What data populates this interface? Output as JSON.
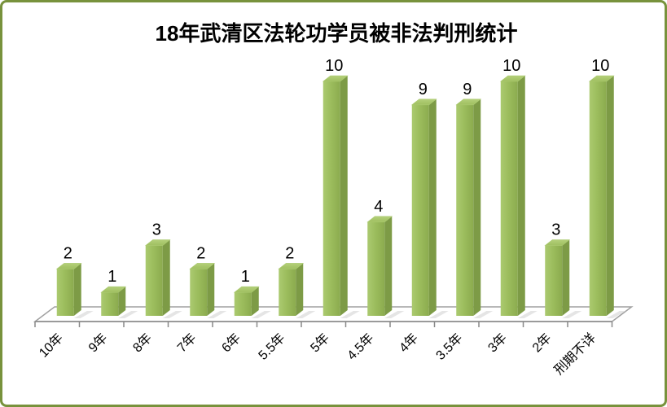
{
  "frame": {
    "border_color": "#78923c",
    "background_color": "#ffffff"
  },
  "chart_data": {
    "type": "bar",
    "style": "3d-column",
    "title": "18年武清区法轮功学员被非法判刑统计",
    "categories": [
      "10年",
      "9年",
      "8年",
      "7年",
      "6年",
      "5.5年",
      "5年",
      "4.5年",
      "4年",
      "3.5年",
      "3年",
      "2年",
      "刑期不详"
    ],
    "values": [
      2,
      1,
      3,
      2,
      1,
      2,
      10,
      4,
      9,
      9,
      10,
      3,
      10
    ],
    "xlabel": "",
    "ylabel": "",
    "ylim": [
      0,
      10
    ],
    "grid": false,
    "legend": "none",
    "data_labels": true,
    "x_tick_rotation_deg": 45,
    "colors": {
      "bar_front_light": "#abca70",
      "bar_front": "#9cbd5d",
      "bar_front_dark": "#8bab4e",
      "bar_side": "#7d9b46",
      "bar_top_light": "#b4d07a",
      "bar_top": "#9fbf60",
      "floor_fill": "#ffffff",
      "floor_stroke": "#a0a0a0",
      "floor_shadow": "#d0d0d0",
      "axis": "#898989",
      "text": "#000000"
    }
  }
}
